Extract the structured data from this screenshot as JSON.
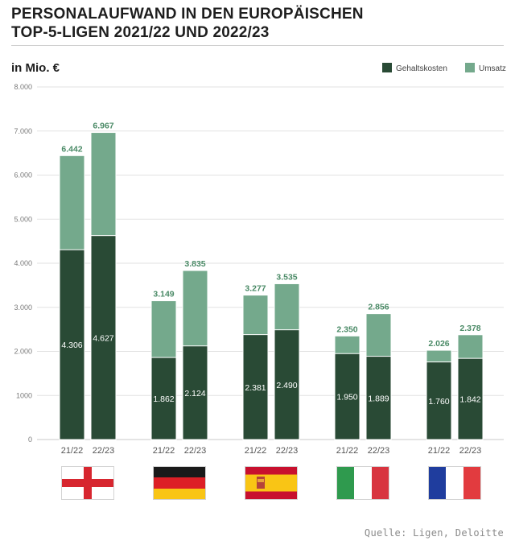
{
  "title_line1": "PERSONALAUFWAND IN DEN EUROPÄISCHEN",
  "title_line2": "TOP-5-LIGEN 2021/22 UND 2022/23",
  "source": "Quelle: Ligen, Deloitte",
  "colors": {
    "salary": "#294a35",
    "revenue": "#74a98c",
    "revenue_label": "#4a8a66",
    "grid": "#e2e2e2",
    "axis_text": "#7a7a7a"
  },
  "chart_data": {
    "type": "bar",
    "stacking": "overlay",
    "title": "PERSONALAUFWAND IN DEN EUROPÄISCHEN TOP-5-LIGEN 2021/22 UND 2022/23",
    "ylabel": "in Mio. €",
    "ylim": [
      0,
      8000
    ],
    "yticks": [
      0,
      1000,
      2000,
      3000,
      4000,
      5000,
      6000,
      7000,
      8000
    ],
    "ytick_labels": [
      "0",
      "1000",
      "2.000",
      "3.000",
      "4.000",
      "5.000",
      "6.000",
      "7.000",
      "8.000"
    ],
    "legend_position": "top-right",
    "legend": [
      "Gehaltskosten",
      "Umsatz"
    ],
    "groups": [
      {
        "flag": "england",
        "seasons": [
          "21/22",
          "22/23"
        ],
        "salary": [
          4306,
          4627
        ],
        "revenue": [
          6442,
          6967
        ],
        "salary_labels": [
          "4.306",
          "4.627"
        ],
        "revenue_labels": [
          "6.442",
          "6.967"
        ]
      },
      {
        "flag": "germany",
        "seasons": [
          "21/22",
          "22/23"
        ],
        "salary": [
          1862,
          2124
        ],
        "revenue": [
          3149,
          3835
        ],
        "salary_labels": [
          "1.862",
          "2.124"
        ],
        "revenue_labels": [
          "3.149",
          "3.835"
        ]
      },
      {
        "flag": "spain",
        "seasons": [
          "21/22",
          "22/23"
        ],
        "salary": [
          2381,
          2490
        ],
        "revenue": [
          3277,
          3535
        ],
        "salary_labels": [
          "2.381",
          "2.490"
        ],
        "revenue_labels": [
          "3.277",
          "3.535"
        ]
      },
      {
        "flag": "italy",
        "seasons": [
          "21/22",
          "22/23"
        ],
        "salary": [
          1950,
          1889
        ],
        "revenue": [
          2350,
          2856
        ],
        "salary_labels": [
          "1.950",
          "1.889"
        ],
        "revenue_labels": [
          "2.350",
          "2.856"
        ]
      },
      {
        "flag": "france",
        "seasons": [
          "21/22",
          "22/23"
        ],
        "salary": [
          1760,
          1842
        ],
        "revenue": [
          2026,
          2378
        ],
        "salary_labels": [
          "1.760",
          "1.842"
        ],
        "revenue_labels": [
          "2.026",
          "2.378"
        ]
      }
    ]
  }
}
